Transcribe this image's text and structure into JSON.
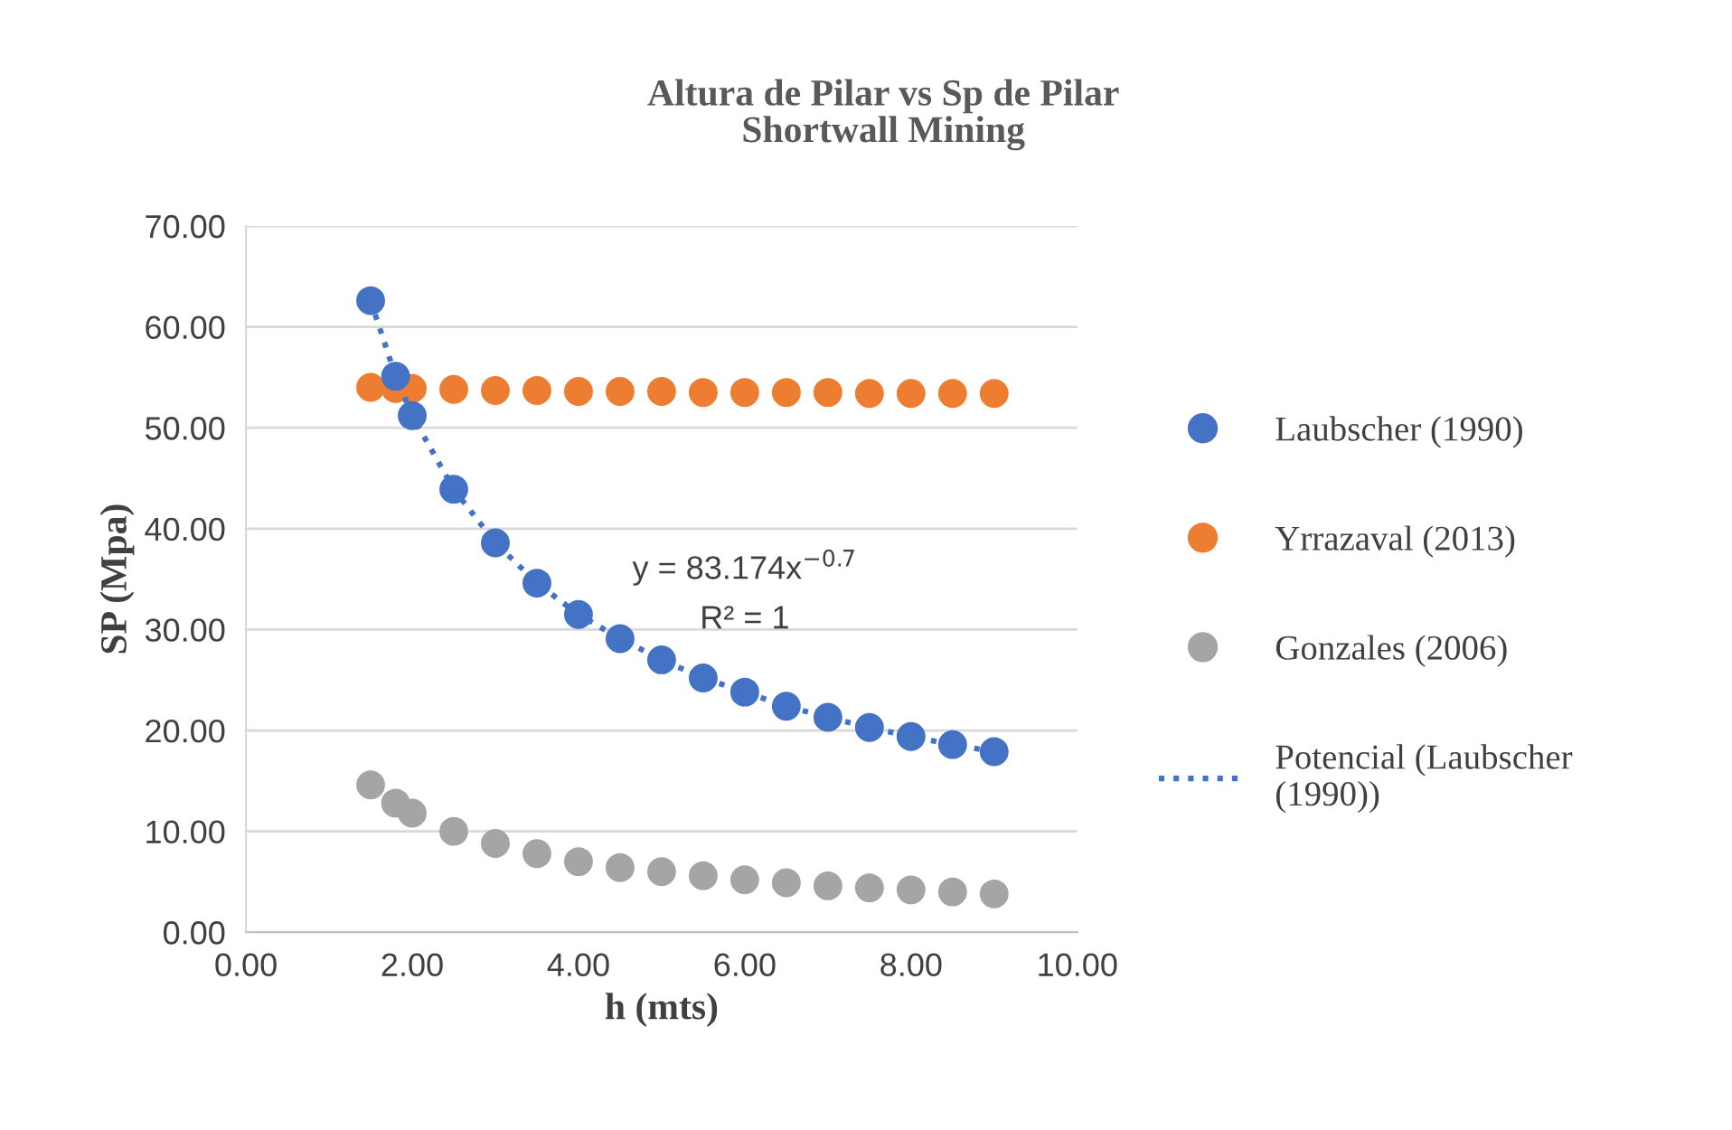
{
  "chart_data": {
    "type": "scatter",
    "title": "Altura de Pilar vs Sp de Pilar\nShortwall Mining",
    "xlabel": "h (mts)",
    "ylabel": "SP (Mpa)",
    "x": [
      1.5,
      1.8,
      2.0,
      2.5,
      3.0,
      3.5,
      4.0,
      4.5,
      5.0,
      5.5,
      6.0,
      6.5,
      7.0,
      7.5,
      8.0,
      8.5,
      9.0
    ],
    "series": [
      {
        "name": "Laubscher (1990)",
        "color": "#4472c4",
        "values": [
          62.6,
          55.1,
          51.2,
          43.9,
          38.6,
          34.6,
          31.5,
          29.1,
          27.0,
          25.2,
          23.8,
          22.4,
          21.3,
          20.3,
          19.4,
          18.6,
          17.9
        ]
      },
      {
        "name": "Yrrazaval (2013)",
        "color": "#ed7d31",
        "values": [
          54.0,
          53.9,
          53.9,
          53.8,
          53.7,
          53.7,
          53.6,
          53.6,
          53.6,
          53.5,
          53.5,
          53.5,
          53.5,
          53.4,
          53.4,
          53.4,
          53.4
        ]
      },
      {
        "name": "Gonzales (2006)",
        "color": "#a5a5a5",
        "values": [
          14.6,
          12.8,
          11.8,
          10.0,
          8.8,
          7.8,
          7.0,
          6.4,
          6.0,
          5.6,
          5.2,
          4.9,
          4.6,
          4.4,
          4.2,
          4.0,
          3.8
        ]
      },
      {
        "name": "Potencial (Laubscher\n(1990))",
        "type": "line",
        "line_style": "dotted",
        "marker": "none",
        "color": "#4472c4",
        "values": [
          62.6,
          55.1,
          51.2,
          43.9,
          38.6,
          34.6,
          31.5,
          29.1,
          27.0,
          25.2,
          23.8,
          22.4,
          21.3,
          20.3,
          19.4,
          18.6,
          17.9
        ]
      }
    ],
    "marker": "circle",
    "annotations": [
      "y = 83.174x$^{−0.7}$",
      "R² = 1"
    ],
    "xlim": [
      0,
      10
    ],
    "xticks": [
      {
        "value": 0,
        "label": "0.00"
      },
      {
        "value": 2,
        "label": "2.00"
      },
      {
        "value": 4,
        "label": "4.00"
      },
      {
        "value": 6,
        "label": "6.00"
      },
      {
        "value": 8,
        "label": "8.00"
      },
      {
        "value": 10,
        "label": "10.00"
      }
    ],
    "ylim": [
      0,
      70
    ],
    "yticks": [
      {
        "value": 0,
        "label": "0.00"
      },
      {
        "value": 10,
        "label": "10.00"
      },
      {
        "value": 20,
        "label": "20.00"
      },
      {
        "value": 30,
        "label": "30.00"
      },
      {
        "value": 40,
        "label": "40.00"
      },
      {
        "value": 50,
        "label": "50.00"
      },
      {
        "value": 60,
        "label": "60.00"
      },
      {
        "value": 70,
        "label": "70.00"
      }
    ],
    "grid": "y",
    "legend": "right"
  }
}
